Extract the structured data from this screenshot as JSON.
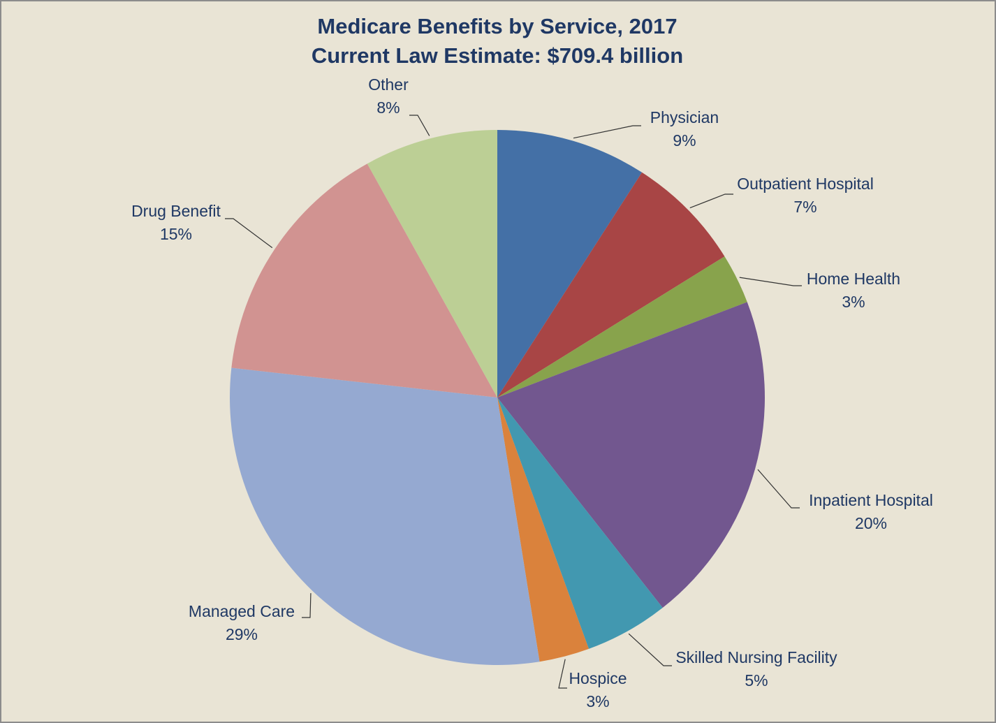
{
  "chart_data": {
    "type": "pie",
    "title": "Medicare Benefits by Service, 2017",
    "subtitle": "Current Law Estimate: $709.4 billion",
    "categories": [
      "Physician",
      "Outpatient Hospital",
      "Home Health",
      "Inpatient Hospital",
      "Skilled Nursing Facility",
      "Hospice",
      "Managed Care",
      "Drug Benefit",
      "Other"
    ],
    "values": [
      9,
      7,
      3,
      20,
      5,
      3,
      29,
      15,
      8
    ],
    "value_labels": [
      "9%",
      "7%",
      "3%",
      "20%",
      "5%",
      "3%",
      "29%",
      "15%",
      "8%"
    ],
    "colors": [
      "#4470a6",
      "#a84545",
      "#88a34c",
      "#72578f",
      "#4298b0",
      "#da823c",
      "#95a9d1",
      "#d19391",
      "#bccf95"
    ]
  }
}
